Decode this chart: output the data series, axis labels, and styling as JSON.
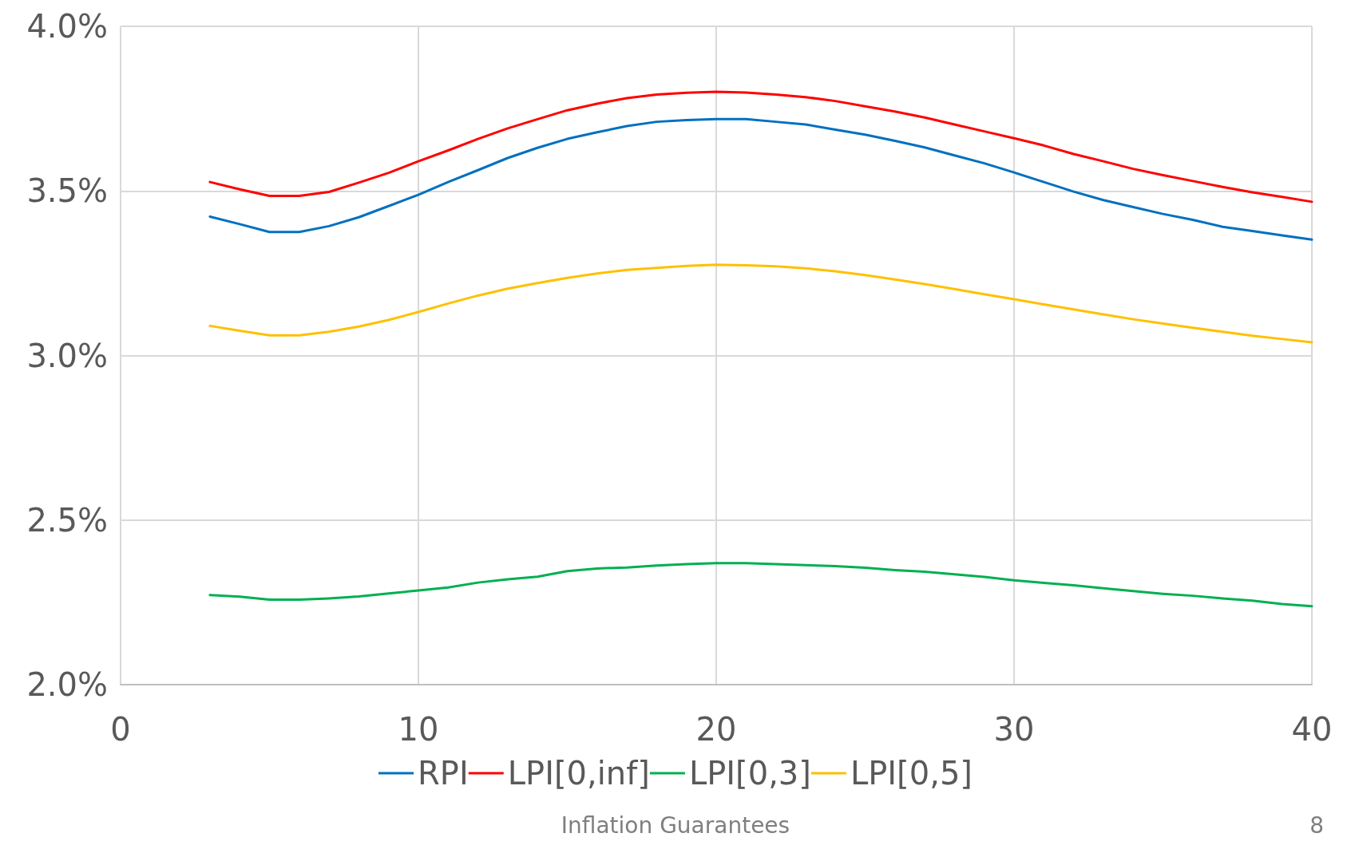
{
  "chart_data": {
    "type": "line",
    "x": [
      3,
      4,
      5,
      6,
      7,
      8,
      9,
      10,
      11,
      12,
      13,
      14,
      15,
      16,
      17,
      18,
      19,
      20,
      21,
      22,
      23,
      24,
      25,
      26,
      27,
      28,
      29,
      30,
      31,
      32,
      33,
      34,
      35,
      36,
      37,
      38,
      39,
      40
    ],
    "series": [
      {
        "name": "RPI",
        "color": "#0070c0",
        "values": [
          3.422,
          3.399,
          3.375,
          3.375,
          3.393,
          3.42,
          3.454,
          3.488,
          3.527,
          3.563,
          3.6,
          3.631,
          3.658,
          3.678,
          3.697,
          3.71,
          3.715,
          3.718,
          3.718,
          3.71,
          3.702,
          3.686,
          3.671,
          3.652,
          3.632,
          3.608,
          3.584,
          3.556,
          3.527,
          3.498,
          3.472,
          3.451,
          3.43,
          3.412,
          3.391,
          3.378,
          3.365,
          3.352
        ]
      },
      {
        "name": "LPI[0,inf]",
        "color": "#ff0000",
        "values": [
          3.527,
          3.505,
          3.485,
          3.485,
          3.497,
          3.525,
          3.555,
          3.59,
          3.623,
          3.658,
          3.69,
          3.718,
          3.745,
          3.765,
          3.782,
          3.793,
          3.798,
          3.801,
          3.799,
          3.793,
          3.785,
          3.773,
          3.757,
          3.741,
          3.723,
          3.702,
          3.681,
          3.66,
          3.638,
          3.612,
          3.59,
          3.567,
          3.548,
          3.53,
          3.512,
          3.496,
          3.482,
          3.467
        ]
      },
      {
        "name": "LPI[0,3]",
        "color": "#00b050",
        "values": [
          2.272,
          2.267,
          2.258,
          2.258,
          2.262,
          2.268,
          2.277,
          2.286,
          2.295,
          2.31,
          2.32,
          2.328,
          2.345,
          2.353,
          2.356,
          2.362,
          2.366,
          2.369,
          2.369,
          2.366,
          2.363,
          2.36,
          2.355,
          2.348,
          2.343,
          2.335,
          2.327,
          2.317,
          2.309,
          2.302,
          2.293,
          2.284,
          2.276,
          2.27,
          2.262,
          2.255,
          2.245,
          2.238
        ]
      },
      {
        "name": "LPI[0,5]",
        "color": "#ffc000",
        "values": [
          3.09,
          3.075,
          3.061,
          3.061,
          3.072,
          3.088,
          3.108,
          3.132,
          3.158,
          3.182,
          3.203,
          3.22,
          3.236,
          3.249,
          3.26,
          3.266,
          3.272,
          3.276,
          3.274,
          3.271,
          3.265,
          3.256,
          3.244,
          3.231,
          3.217,
          3.202,
          3.186,
          3.171,
          3.155,
          3.14,
          3.125,
          3.11,
          3.097,
          3.084,
          3.072,
          3.06,
          3.05,
          3.04
        ]
      }
    ],
    "xlim": [
      0,
      40
    ],
    "xticks": [
      0,
      10,
      20,
      30,
      40
    ],
    "ylim": [
      2,
      4
    ],
    "yticks": [
      {
        "value": 2,
        "label": "2.0%"
      },
      {
        "value": 2.5,
        "label": "2.5%"
      },
      {
        "value": 3,
        "label": "3.0%"
      },
      {
        "value": 3.5,
        "label": "3.5%"
      },
      {
        "value": 4,
        "label": "4.0%"
      }
    ],
    "grid": true,
    "legend": "bottom",
    "marker": "none",
    "line_style": "solid",
    "annotations": [
      "Inflation Guarantees",
      "8"
    ]
  }
}
